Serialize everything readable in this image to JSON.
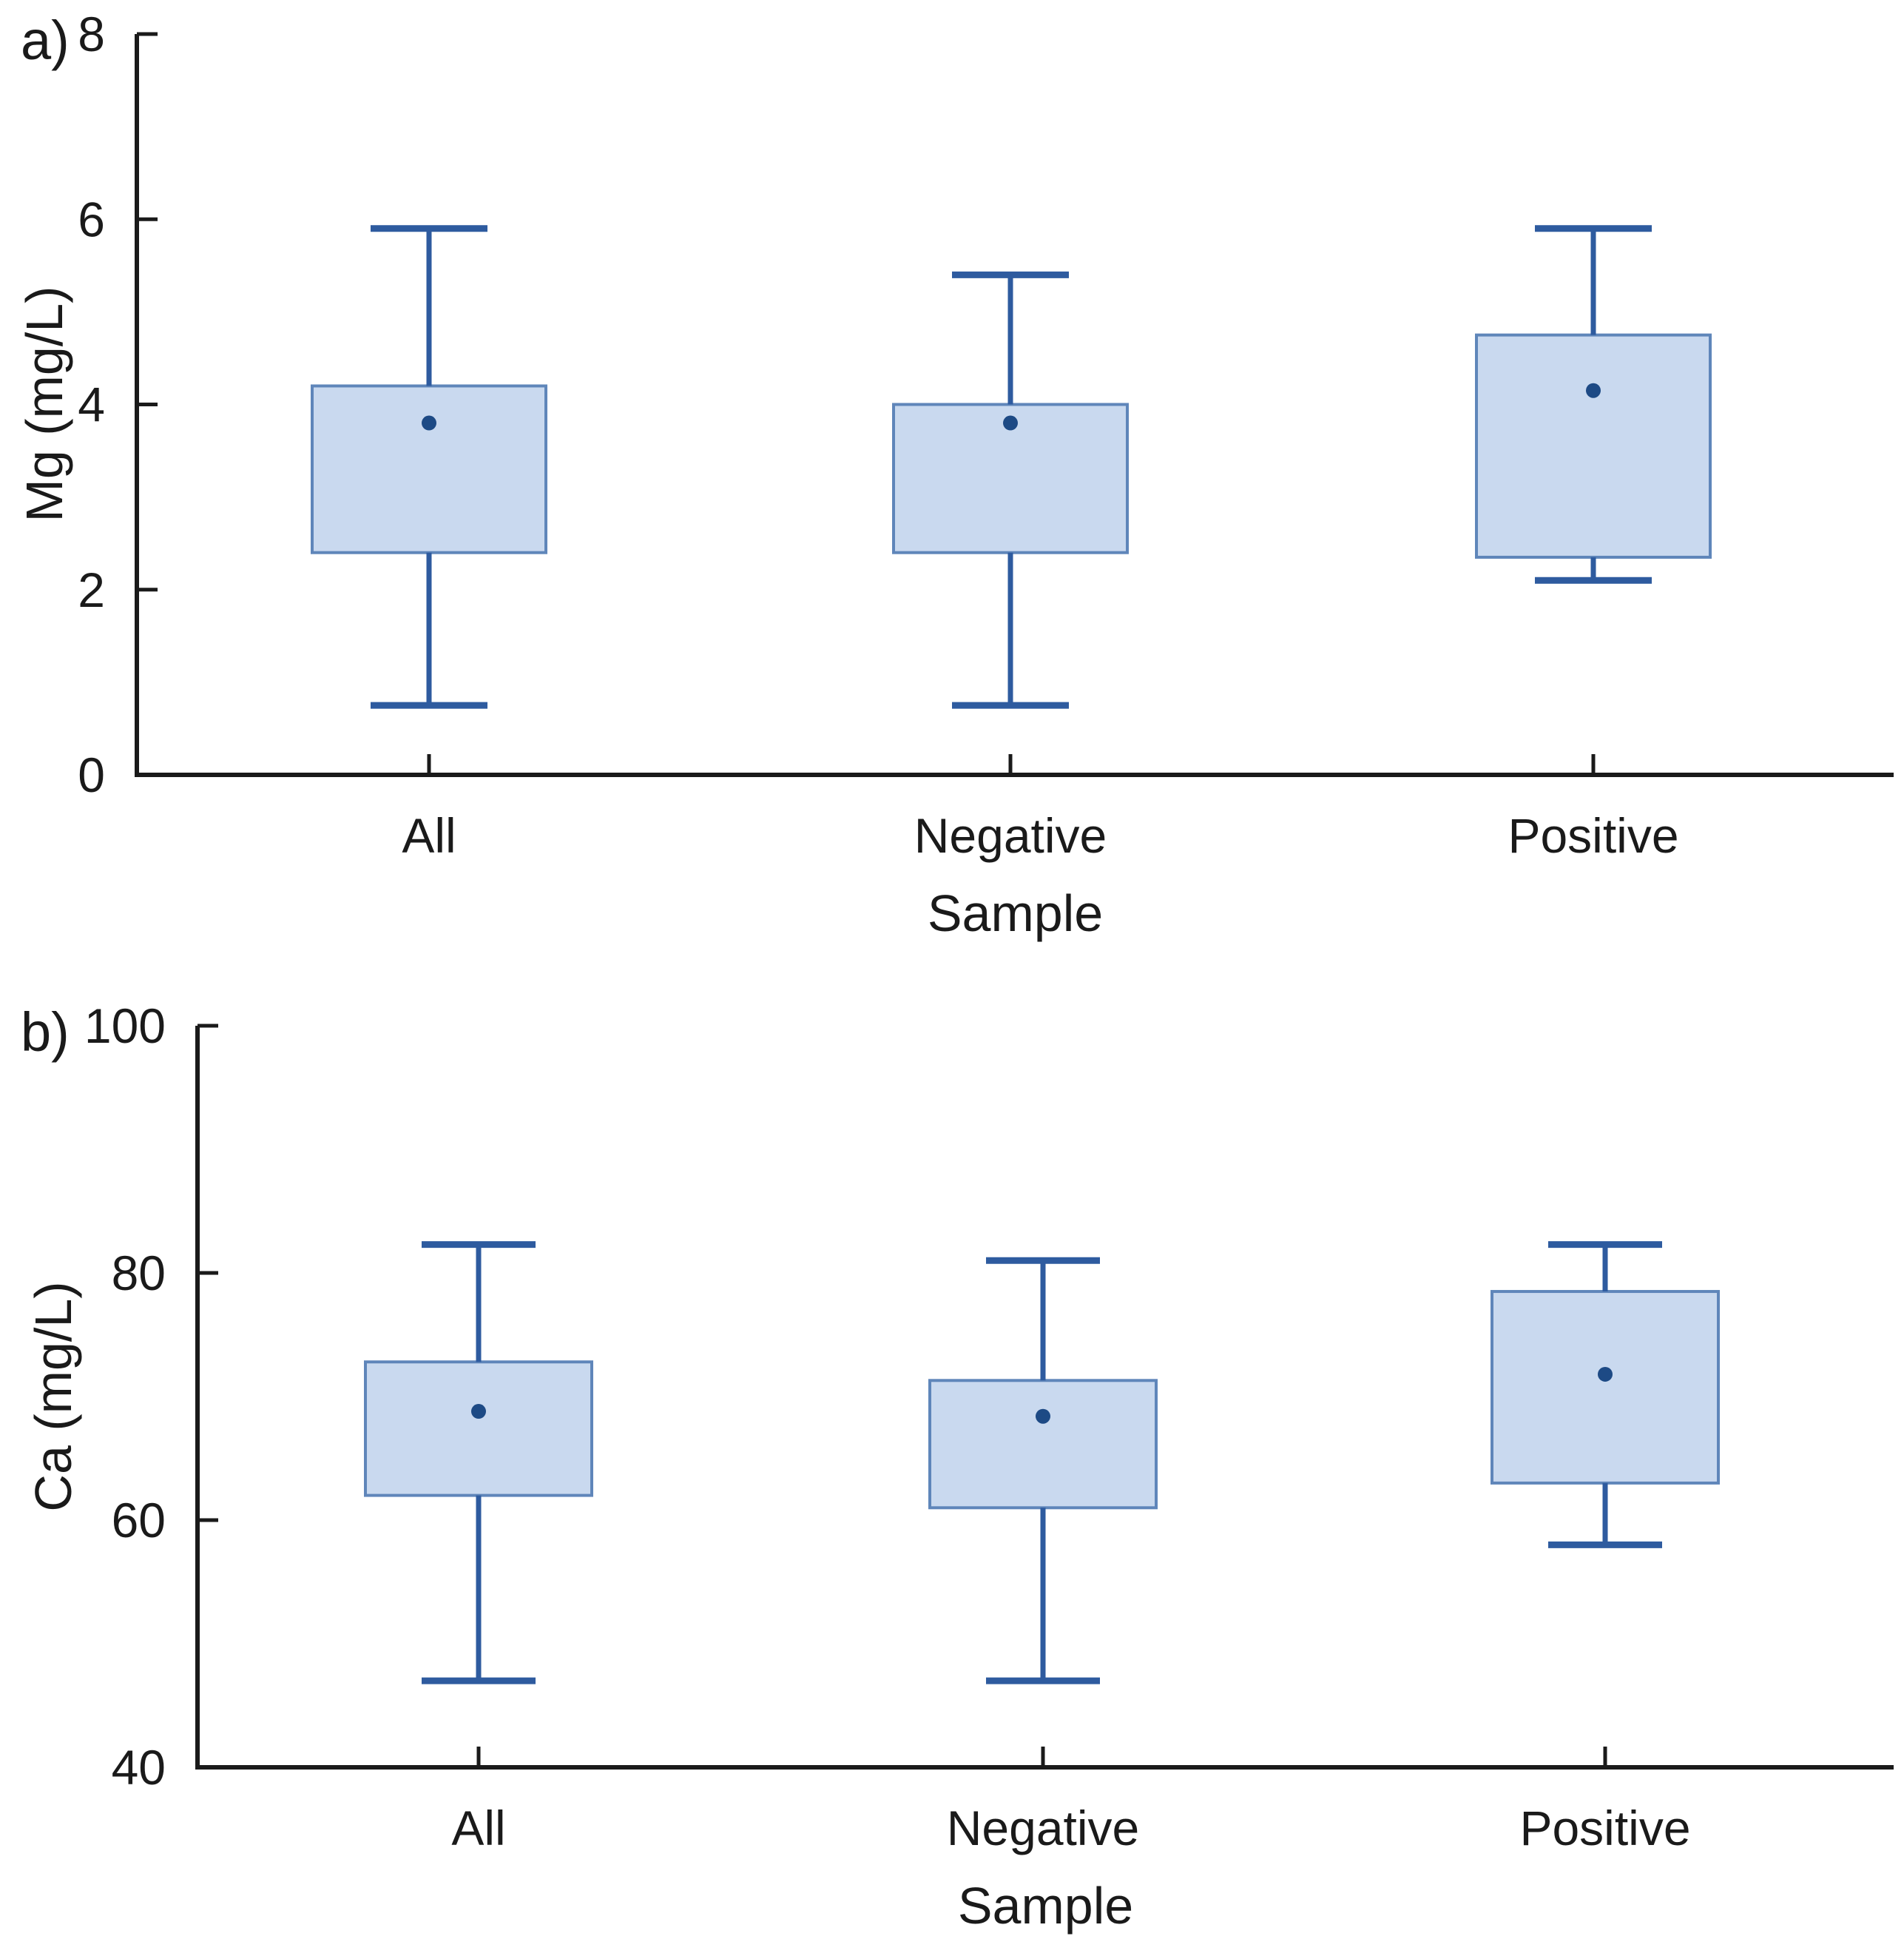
{
  "figure_type": "two-panel vertical box plot figure",
  "colors": {
    "background": "#ffffff",
    "box_fill": "#c9d9ef",
    "box_border": "#5f86ba",
    "whisker": "#2e5b9f",
    "mean_dot": "#1d4a85",
    "axis": "#1a1a1a",
    "text": "#1a1a1a"
  },
  "chart_data": [
    {
      "type": "box",
      "panel_label": "a)",
      "xlabel": "Sample",
      "ylabel": "Mg (mg/L)",
      "ylim": [
        0,
        8
      ],
      "yticks": [
        0,
        2,
        4,
        6,
        8
      ],
      "categories": [
        "All",
        "Negative",
        "Positive"
      ],
      "series": [
        {
          "name": "All",
          "whisker_low": 0.75,
          "q1": 2.4,
          "mean": 3.8,
          "q3": 4.2,
          "whisker_high": 5.9
        },
        {
          "name": "Negative",
          "whisker_low": 0.75,
          "q1": 2.4,
          "mean": 3.8,
          "q3": 4.0,
          "whisker_high": 5.4
        },
        {
          "name": "Positive",
          "whisker_low": 2.1,
          "q1": 2.35,
          "mean": 4.15,
          "q3": 4.75,
          "whisker_high": 5.9
        }
      ],
      "median_line": false,
      "mean_marker": "dot",
      "grid": false,
      "legend": "none"
    },
    {
      "type": "box",
      "panel_label": "b)",
      "xlabel": "Sample",
      "ylabel": "Ca (mg/L)",
      "ylim": [
        40,
        100
      ],
      "yticks": [
        40,
        60,
        80,
        100
      ],
      "categories": [
        "All",
        "Negative",
        "Positive"
      ],
      "series": [
        {
          "name": "All",
          "whisker_low": 47,
          "q1": 62,
          "mean": 68.8,
          "q3": 72.8,
          "whisker_high": 82.3
        },
        {
          "name": "Negative",
          "whisker_low": 47,
          "q1": 61,
          "mean": 68.4,
          "q3": 71.3,
          "whisker_high": 81.0
        },
        {
          "name": "Positive",
          "whisker_low": 58,
          "q1": 63,
          "mean": 71.8,
          "q3": 78.5,
          "whisker_high": 82.3
        }
      ],
      "median_line": false,
      "mean_marker": "dot",
      "grid": false,
      "legend": "none"
    }
  ]
}
